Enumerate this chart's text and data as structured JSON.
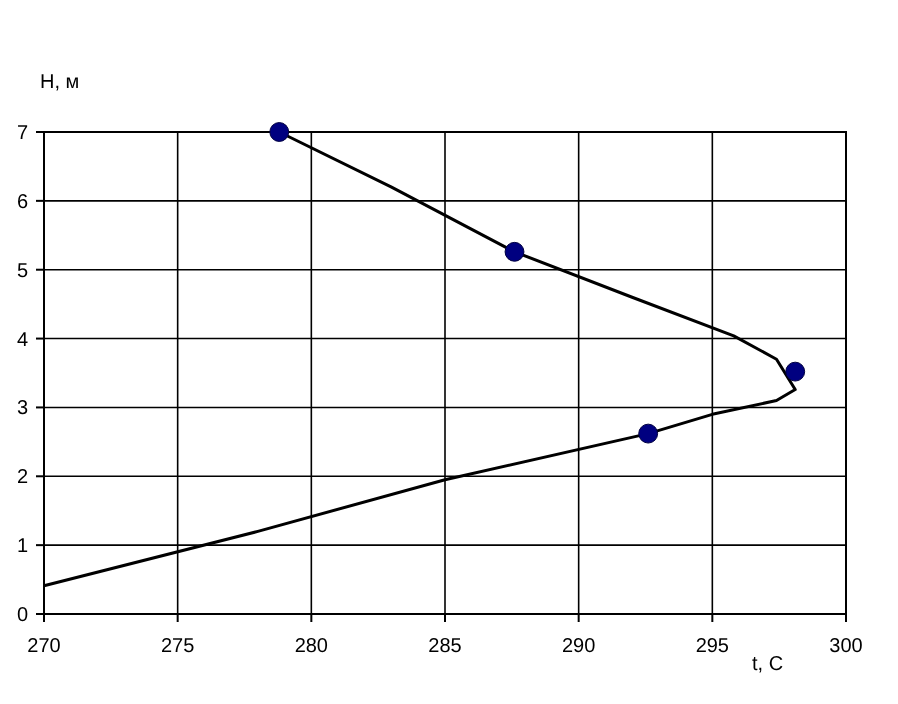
{
  "chart_data": {
    "type": "line",
    "xlabel": "t, С",
    "ylabel": "Н, м",
    "xlim": [
      270,
      300
    ],
    "xticks": [
      270,
      275,
      280,
      285,
      290,
      295,
      300
    ],
    "ylim": [
      0,
      7
    ],
    "yticks": [
      0,
      1,
      2,
      3,
      4,
      5,
      6,
      7
    ],
    "grid": true,
    "series": [
      {
        "color": "#000000",
        "marker": "none",
        "x": [
          278.8,
          283,
          287.6,
          292,
          295.8,
          297.4,
          298.1,
          297.4,
          295,
          292.6,
          285,
          278,
          270
        ],
        "values": [
          7,
          6.2,
          5.26,
          4.6,
          4.04,
          3.7,
          3.26,
          3.1,
          2.9,
          2.62,
          1.95,
          1.2,
          0.41
        ]
      },
      {
        "type": "scatter",
        "color": "#000080",
        "marker": "circle",
        "x": [
          278.8,
          287.6,
          298.1,
          292.6
        ],
        "values": [
          7,
          5.26,
          3.52,
          2.62
        ]
      }
    ]
  }
}
